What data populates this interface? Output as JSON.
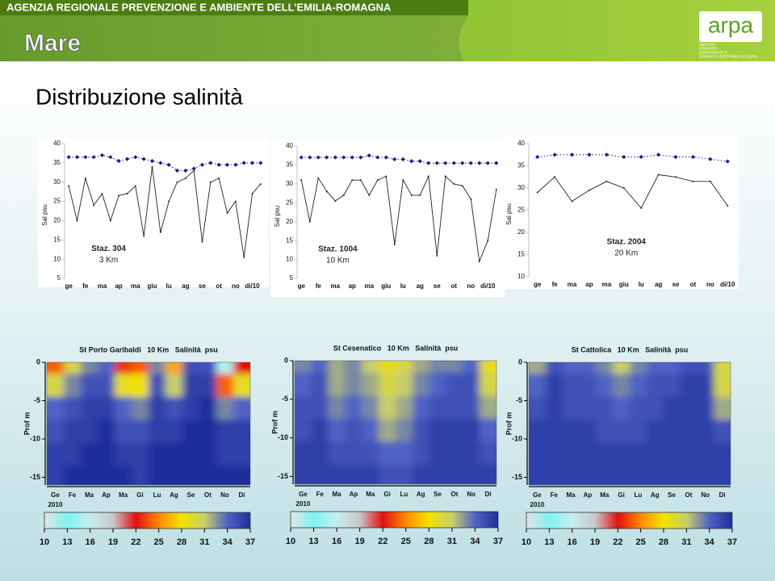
{
  "header": {
    "agency": "AGENZIA REGIONALE PREVENZIONE E AMBIENTE DELL’EMILIA-ROMAGNA",
    "section": "Mare",
    "logo_text": "arpa",
    "logo_subtitle": [
      "agenzia",
      "regionale",
      "prevenzione e",
      "ambiente dell'emilia-romagna"
    ]
  },
  "title": "Distribuzione salinità",
  "chart_data": [
    {
      "type": "line",
      "ylabel": "Sal psu",
      "categories": [
        "ge",
        null,
        "fe",
        null,
        "ma",
        null,
        "ap",
        null,
        "ma",
        null,
        "giu",
        null,
        "lu",
        null,
        "ag",
        null,
        "se",
        null,
        "ot",
        null,
        "no",
        null,
        "di/10",
        null
      ],
      "series": [
        {
          "color": "#1a1a8c",
          "dashed": true,
          "marker": "diamond",
          "values": [
            36.5,
            36.5,
            36.5,
            36.5,
            37,
            36.5,
            35.5,
            36,
            36.5,
            36,
            35.5,
            35,
            34.5,
            33,
            33,
            33.5,
            34.5,
            35,
            34.5,
            34.5,
            34.5,
            35,
            35,
            35
          ]
        },
        {
          "color": "#222222",
          "dashed": false,
          "marker": "dot",
          "values": [
            29,
            20,
            31,
            24,
            27,
            20,
            26.5,
            27,
            29,
            16,
            34,
            17,
            25,
            30,
            31,
            33,
            14.5,
            30,
            31,
            22,
            25,
            10.5,
            27,
            29.5
          ]
        }
      ],
      "ylim": [
        5,
        40
      ],
      "yticks": [
        5,
        10,
        15,
        20,
        25,
        30,
        35,
        40
      ],
      "annotations": [
        "Staz. 304",
        "3 Km"
      ]
    },
    {
      "type": "line",
      "ylabel": "Sal psu",
      "categories": [
        "ge",
        null,
        "fe",
        null,
        "ma",
        null,
        "ap",
        null,
        "ma",
        null,
        "giu",
        null,
        "lu",
        null,
        "ag",
        null,
        "se",
        null,
        "ot",
        null,
        "no",
        null,
        "di/10",
        null
      ],
      "series": [
        {
          "color": "#1a1a8c",
          "dashed": true,
          "marker": "diamond",
          "values": [
            37,
            37,
            37,
            37,
            37,
            37,
            37,
            37,
            37.5,
            37,
            37,
            36.5,
            36.5,
            36,
            36,
            35.5,
            35.5,
            35.5,
            35.5,
            35.5,
            35.5,
            35.5,
            35.5,
            35.5
          ]
        },
        {
          "color": "#222222",
          "dashed": false,
          "marker": "dot",
          "values": [
            31,
            20,
            31.5,
            28,
            25.5,
            27,
            31,
            31,
            27,
            31,
            32,
            14,
            31,
            27,
            27,
            32,
            11,
            32,
            30,
            29.5,
            26,
            9.5,
            15,
            28.5
          ]
        }
      ],
      "ylim": [
        5,
        40
      ],
      "yticks": [
        5,
        10,
        15,
        20,
        25,
        30,
        35,
        40
      ],
      "annotations": [
        "Staz. 1004",
        "10 Km"
      ]
    },
    {
      "type": "line",
      "ylabel": "Sal psu",
      "categories": [
        "ge",
        "fe",
        "ma",
        "ap",
        "ma",
        "giu",
        "lu",
        "ag",
        "se",
        "ot",
        "no",
        "di/10"
      ],
      "series": [
        {
          "color": "#1a1a8c",
          "dashed": true,
          "marker": "diamond",
          "values": [
            37,
            37.5,
            37.5,
            37.5,
            37.5,
            37,
            37,
            37.5,
            37,
            37,
            36.5,
            36
          ]
        },
        {
          "color": "#222222",
          "dashed": false,
          "marker": "dot",
          "values": [
            29,
            32.5,
            27,
            29.5,
            31.5,
            30,
            25.5,
            33,
            32.5,
            31.5,
            31.5,
            26
          ]
        }
      ],
      "ylim": [
        10,
        40
      ],
      "yticks": [
        10,
        15,
        20,
        25,
        30,
        35,
        40
      ],
      "annotations": [
        "Staz. 2004",
        "20 Km"
      ]
    },
    {
      "type": "heatmap",
      "title": "St Porto Garibaldi   10 Km   Salinità  psu",
      "ylabel": "Prof m",
      "categories": [
        "Ge",
        "Fe",
        "Ma",
        "Ap",
        "Ma",
        "Gi",
        "Lu",
        "Ag",
        "Se",
        "Ot",
        "No",
        "Di"
      ],
      "year": "2010",
      "depths": [
        0,
        -3,
        -6,
        -9,
        -12,
        -15
      ],
      "z": [
        [
          24,
          30,
          33,
          34,
          23,
          24,
          33,
          26,
          35,
          35,
          15,
          22
        ],
        [
          30,
          33,
          35,
          35,
          29,
          28,
          35,
          31,
          36,
          36,
          24,
          29
        ],
        [
          34,
          35,
          36,
          36,
          34,
          33,
          36,
          35,
          36,
          37,
          33,
          34
        ],
        [
          35,
          36,
          36,
          37,
          35,
          35,
          36,
          36,
          37,
          37,
          36,
          36
        ],
        [
          36,
          36,
          37,
          37,
          36,
          36,
          37,
          37,
          37,
          37,
          36,
          36
        ],
        [
          36,
          37,
          37,
          37,
          37,
          36,
          37,
          37,
          37,
          37,
          37,
          37
        ]
      ],
      "ylim": [
        -16,
        0
      ],
      "yticks": [
        0,
        -5,
        -10,
        -15
      ],
      "colorbar": {
        "ticks": [
          10,
          13,
          16,
          19,
          22,
          25,
          28,
          31,
          34,
          37
        ],
        "colors": [
          "#e4e4e4",
          "#7ff2f2",
          "#c6eef0",
          "#c8c8c8",
          "#e01010",
          "#ff8a00",
          "#f2e200",
          "#c8cf6a",
          "#4f63c4",
          "#1e2e9c"
        ]
      }
    },
    {
      "type": "heatmap",
      "title": "St Cesenatico   10 Km   Salinità  psu",
      "ylabel": "Prof m",
      "categories": [
        "Ge",
        "Fe",
        "Ma",
        "Ap",
        "Ma",
        "Gi",
        "Lu",
        "Ag",
        "Se",
        "Ot",
        "No",
        "Di"
      ],
      "year": "2010",
      "depths": [
        0,
        -3,
        -6,
        -9,
        -12,
        -15
      ],
      "z": [
        [
          33,
          34,
          32,
          33,
          31,
          29,
          30,
          32,
          33,
          33,
          34,
          29
        ],
        [
          34,
          35,
          32,
          33,
          32,
          30,
          31,
          33,
          34,
          35,
          35,
          30
        ],
        [
          35,
          35,
          33,
          34,
          33,
          31,
          32,
          34,
          35,
          35,
          35,
          32
        ],
        [
          35,
          36,
          34,
          35,
          34,
          32,
          33,
          35,
          36,
          36,
          36,
          34
        ],
        [
          36,
          36,
          35,
          35,
          35,
          34,
          34,
          35,
          36,
          36,
          36,
          35
        ],
        [
          36,
          36,
          36,
          36,
          36,
          35,
          35,
          36,
          36,
          36,
          36,
          36
        ]
      ],
      "ylim": [
        -16,
        0
      ],
      "yticks": [
        0,
        -5,
        -10,
        -15
      ],
      "colorbar": {
        "ticks": [
          10,
          13,
          16,
          19,
          22,
          25,
          28,
          31,
          34,
          37
        ],
        "colors": [
          "#e4e4e4",
          "#7ff2f2",
          "#c6eef0",
          "#c8c8c8",
          "#e01010",
          "#ff8a00",
          "#f2e200",
          "#c8cf6a",
          "#4f63c4",
          "#1e2e9c"
        ]
      }
    },
    {
      "type": "heatmap",
      "title": "St Cattolica   10 Km   Salinità  psu",
      "ylabel": "Prof m",
      "categories": [
        "Ge",
        "Fe",
        "Ma",
        "Ap",
        "Ma",
        "Gi",
        "Lu",
        "Ag",
        "Se",
        "Ot",
        "No",
        "Di"
      ],
      "year": "2010",
      "depths": [
        0,
        -3,
        -6,
        -9,
        -12,
        -15
      ],
      "z": [
        [
          32,
          35,
          34,
          34,
          33,
          31,
          33,
          34,
          34,
          35,
          35,
          30
        ],
        [
          34,
          36,
          35,
          35,
          34,
          33,
          34,
          35,
          35,
          36,
          36,
          30
        ],
        [
          35,
          36,
          35,
          35,
          35,
          34,
          35,
          35,
          36,
          36,
          36,
          32
        ],
        [
          36,
          36,
          36,
          36,
          35,
          35,
          35,
          36,
          36,
          36,
          36,
          35
        ],
        [
          36,
          36,
          36,
          36,
          36,
          36,
          36,
          36,
          36,
          36,
          36,
          36
        ],
        [
          36,
          36,
          36,
          36,
          36,
          36,
          36,
          36,
          36,
          36,
          36,
          36
        ]
      ],
      "ylim": [
        -16,
        0
      ],
      "yticks": [
        0,
        -5,
        -10,
        -15
      ],
      "colorbar": {
        "ticks": [
          10,
          13,
          16,
          19,
          22,
          25,
          28,
          31,
          34,
          37
        ],
        "colors": [
          "#e4e4e4",
          "#7ff2f2",
          "#c6eef0",
          "#c8c8c8",
          "#e01010",
          "#ff8a00",
          "#f2e200",
          "#c8cf6a",
          "#4f63c4",
          "#1e2e9c"
        ]
      }
    }
  ]
}
